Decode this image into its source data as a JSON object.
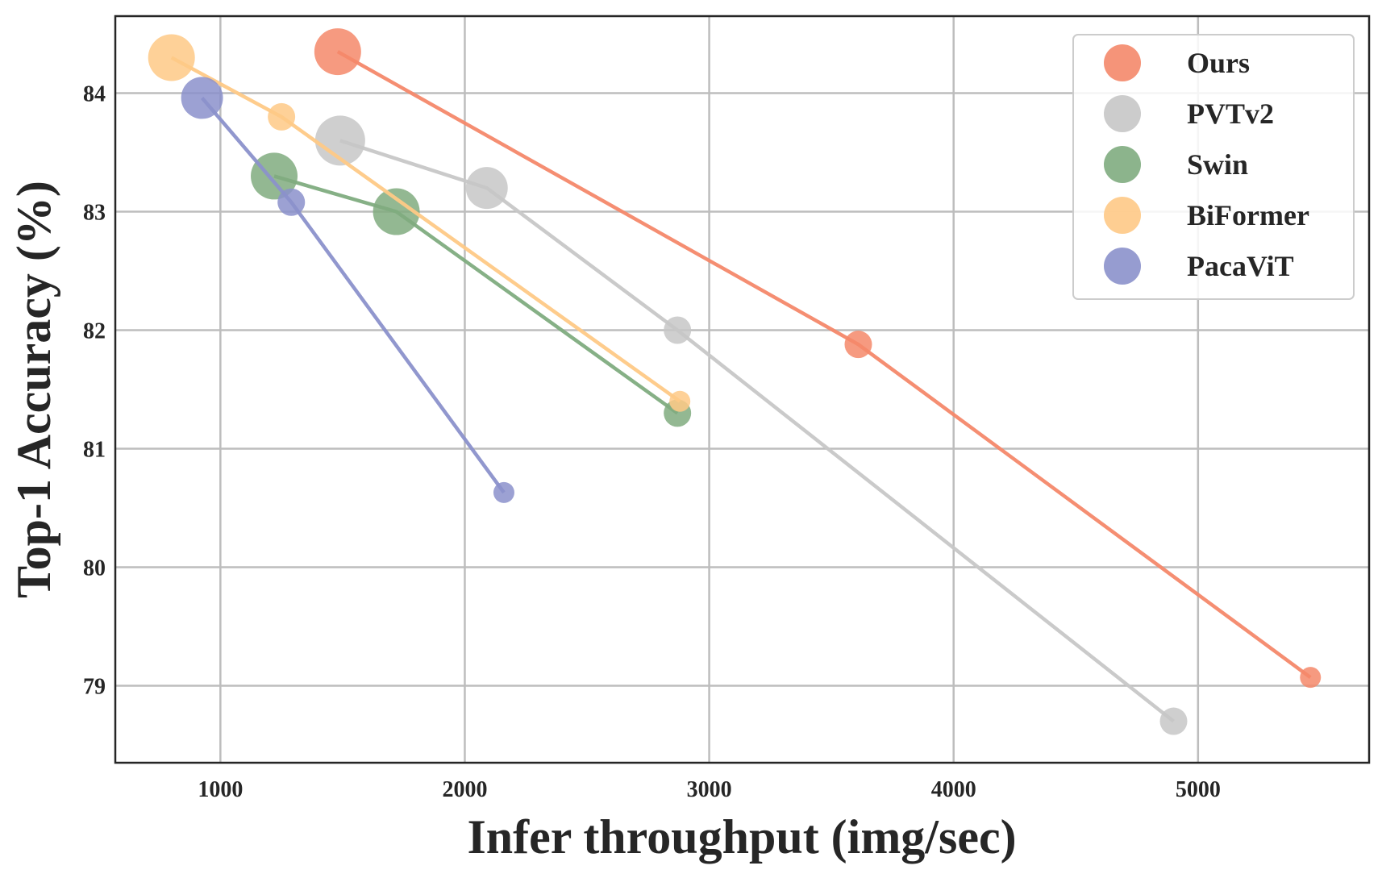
{
  "chart_data": {
    "type": "scatter",
    "title": "",
    "xlabel": "Infer throughput (img/sec)",
    "ylabel": "Top-1 Accuracy (%)",
    "xlim": [
      570,
      5700
    ],
    "ylim": [
      78.35,
      84.65
    ],
    "xticks": [
      1000,
      2000,
      3000,
      4000,
      5000
    ],
    "yticks": [
      79,
      80,
      81,
      82,
      83,
      84
    ],
    "grid": true,
    "legend_position": "top-right",
    "series": [
      {
        "name": "Ours",
        "color": "#f4886a",
        "points": [
          {
            "x": 1480,
            "y": 84.35,
            "size": "large"
          },
          {
            "x": 3610,
            "y": 81.88,
            "size": "small"
          },
          {
            "x": 5460,
            "y": 79.07,
            "size": "tiny"
          }
        ]
      },
      {
        "name": "PVTv2",
        "color": "#c7c7c7",
        "points": [
          {
            "x": 1490,
            "y": 83.6,
            "size": "xlarge"
          },
          {
            "x": 2090,
            "y": 83.2,
            "size": "medium"
          },
          {
            "x": 2870,
            "y": 82.0,
            "size": "small"
          },
          {
            "x": 4900,
            "y": 78.7,
            "size": "small"
          }
        ]
      },
      {
        "name": "Swin",
        "color": "#80ac7f",
        "points": [
          {
            "x": 1220,
            "y": 83.3,
            "size": "large"
          },
          {
            "x": 1720,
            "y": 83.0,
            "size": "large"
          },
          {
            "x": 2870,
            "y": 81.3,
            "size": "small"
          }
        ]
      },
      {
        "name": "BiFormer",
        "color": "#fec986",
        "points": [
          {
            "x": 800,
            "y": 84.3,
            "size": "large"
          },
          {
            "x": 1250,
            "y": 83.8,
            "size": "small"
          },
          {
            "x": 2880,
            "y": 81.4,
            "size": "tiny"
          }
        ]
      },
      {
        "name": "PacaViT",
        "color": "#8b91cb",
        "points": [
          {
            "x": 925,
            "y": 83.96,
            "size": "medium"
          },
          {
            "x": 1290,
            "y": 83.08,
            "size": "small"
          },
          {
            "x": 2160,
            "y": 80.63,
            "size": "tiny"
          }
        ]
      }
    ]
  }
}
